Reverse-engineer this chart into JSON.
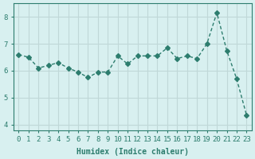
{
  "x": [
    0,
    1,
    2,
    3,
    4,
    5,
    6,
    7,
    8,
    9,
    10,
    11,
    12,
    13,
    14,
    15,
    16,
    17,
    18,
    19,
    20,
    21,
    22,
    23
  ],
  "y": [
    6.6,
    6.5,
    6.1,
    6.2,
    6.3,
    6.1,
    5.95,
    5.75,
    5.95,
    5.95,
    6.55,
    6.25,
    6.55,
    6.55,
    6.55,
    6.85,
    6.45,
    6.55,
    6.45,
    7.0,
    8.15,
    6.75,
    5.7,
    4.35
  ],
  "line_color": "#2d7d6e",
  "marker": "D",
  "marker_size": 3,
  "bg_color": "#d8f0f0",
  "grid_color": "#c0d8d8",
  "xlabel": "Humidex (Indice chaleur)",
  "ylabel": "",
  "xlim": [
    -0.5,
    23.5
  ],
  "ylim": [
    3.8,
    8.5
  ],
  "yticks": [
    4,
    5,
    6,
    7,
    8
  ],
  "xticks": [
    0,
    1,
    2,
    3,
    4,
    5,
    6,
    7,
    8,
    9,
    10,
    11,
    12,
    13,
    14,
    15,
    16,
    17,
    18,
    19,
    20,
    21,
    22,
    23
  ],
  "xlabel_fontsize": 7,
  "tick_fontsize": 6.5,
  "title_fontsize": 7,
  "axis_color": "#2d7d6e",
  "tick_color": "#2d7d6e"
}
